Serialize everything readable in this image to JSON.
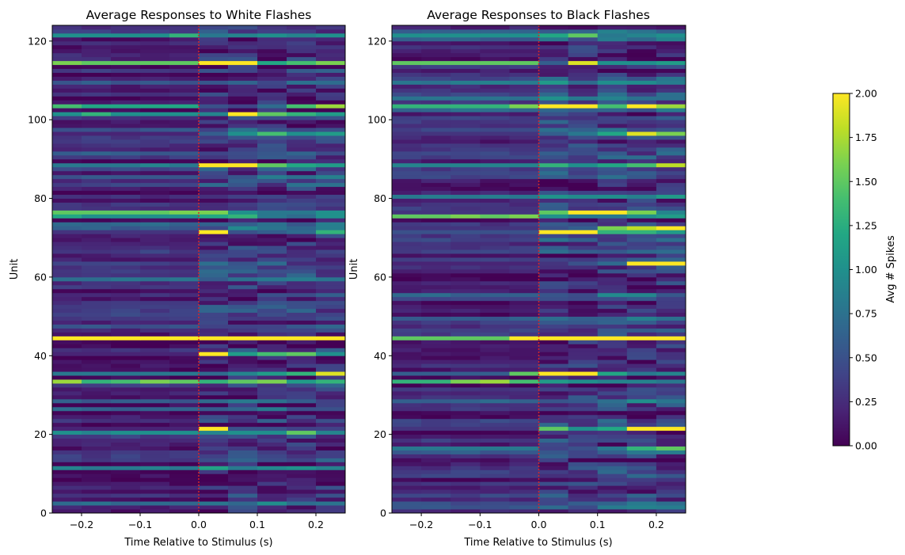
{
  "chart_data": [
    {
      "type": "heatmap",
      "title": "Average Responses to White Flashes",
      "xlabel": "Time Relative to Stimulus (s)",
      "ylabel": "Unit",
      "xlim": [
        -0.25,
        0.25
      ],
      "ylim": [
        0,
        124
      ],
      "x_ticks": [
        "−0.2",
        "−0.1",
        "0.0",
        "0.1",
        "0.2"
      ],
      "x_tick_values": [
        -0.2,
        -0.1,
        0.0,
        0.1,
        0.2
      ],
      "y_ticks": [
        "0",
        "20",
        "40",
        "60",
        "80",
        "100",
        "120"
      ],
      "y_tick_values": [
        0,
        20,
        40,
        60,
        80,
        100,
        120
      ],
      "time_bins": [
        -0.25,
        -0.2,
        -0.15,
        -0.1,
        -0.05,
        0.0,
        0.05,
        0.1,
        0.15,
        0.2,
        0.25
      ],
      "n_units": 124,
      "stimulus_line_x": 0.0,
      "stimulus_line_color": "#d62728",
      "highlight_rows": [
        {
          "unit": 121,
          "values": [
            1.0,
            1.0,
            1.0,
            1.0,
            1.3,
            0.8,
            0.9,
            1.0,
            0.9,
            1.0
          ]
        },
        {
          "unit": 114,
          "values": [
            1.6,
            1.5,
            1.5,
            1.5,
            1.5,
            2.0,
            2.0,
            1.2,
            1.4,
            1.6
          ]
        },
        {
          "unit": 103,
          "values": [
            1.4,
            1.2,
            1.2,
            1.2,
            1.2,
            0.5,
            0.4,
            0.7,
            1.4,
            1.7
          ]
        },
        {
          "unit": 101,
          "values": [
            1.0,
            1.3,
            1.0,
            1.0,
            1.0,
            0.9,
            2.0,
            1.5,
            1.3,
            1.1
          ]
        },
        {
          "unit": 96,
          "values": [
            0.2,
            0.2,
            0.2,
            0.2,
            0.2,
            0.6,
            1.0,
            1.4,
            1.0,
            1.1
          ]
        },
        {
          "unit": 88,
          "values": [
            0.8,
            0.8,
            0.8,
            0.9,
            0.8,
            2.0,
            2.0,
            1.5,
            1.2,
            1.1
          ]
        },
        {
          "unit": 76,
          "values": [
            1.5,
            1.5,
            1.5,
            1.5,
            1.6,
            1.6,
            1.0,
            0.8,
            0.8,
            1.0
          ]
        },
        {
          "unit": 75,
          "values": [
            1.2,
            1.0,
            1.0,
            1.0,
            1.0,
            1.2,
            1.3,
            0.8,
            0.7,
            1.0
          ]
        },
        {
          "unit": 71,
          "values": [
            0.3,
            0.3,
            0.3,
            0.3,
            0.3,
            2.0,
            0.5,
            0.6,
            0.7,
            1.3
          ]
        },
        {
          "unit": 44,
          "values": [
            2.0,
            2.0,
            2.0,
            2.0,
            2.0,
            2.0,
            2.0,
            2.0,
            2.0,
            2.0
          ]
        },
        {
          "unit": 40,
          "values": [
            0.2,
            0.2,
            0.2,
            0.2,
            0.2,
            2.0,
            1.1,
            1.4,
            1.5,
            1.0
          ]
        },
        {
          "unit": 35,
          "values": [
            0.8,
            0.8,
            0.8,
            0.8,
            0.8,
            0.7,
            0.9,
            1.1,
            1.3,
            1.9
          ]
        },
        {
          "unit": 33,
          "values": [
            1.7,
            1.3,
            1.4,
            1.6,
            1.5,
            1.3,
            1.5,
            1.6,
            1.1,
            1.3
          ]
        },
        {
          "unit": 21,
          "values": [
            0.2,
            0.2,
            0.2,
            0.2,
            0.2,
            2.0,
            0.5,
            0.5,
            0.4,
            0.4
          ]
        },
        {
          "unit": 20,
          "values": [
            1.0,
            0.9,
            1.0,
            1.0,
            1.0,
            0.9,
            1.0,
            1.0,
            1.5,
            0.9
          ]
        }
      ]
    },
    {
      "type": "heatmap",
      "title": "Average Responses to Black Flashes",
      "xlabel": "Time Relative to Stimulus (s)",
      "ylabel": "Unit",
      "xlim": [
        -0.25,
        0.25
      ],
      "ylim": [
        0,
        124
      ],
      "x_ticks": [
        "−0.2",
        "−0.1",
        "0.0",
        "0.1",
        "0.2"
      ],
      "x_tick_values": [
        -0.2,
        -0.1,
        0.0,
        0.1,
        0.2
      ],
      "y_ticks": [
        "0",
        "20",
        "40",
        "60",
        "80",
        "100",
        "120"
      ],
      "y_tick_values": [
        0,
        20,
        40,
        60,
        80,
        100,
        120
      ],
      "time_bins": [
        -0.25,
        -0.2,
        -0.15,
        -0.1,
        -0.05,
        0.0,
        0.05,
        0.1,
        0.15,
        0.2,
        0.25
      ],
      "n_units": 124,
      "stimulus_line_x": 0.0,
      "stimulus_line_color": "#d62728",
      "highlight_rows": [
        {
          "unit": 121,
          "values": [
            1.0,
            1.0,
            1.0,
            1.0,
            1.0,
            1.2,
            1.5,
            0.8,
            0.9,
            1.0
          ]
        },
        {
          "unit": 114,
          "values": [
            1.5,
            1.5,
            1.5,
            1.5,
            1.5,
            0.6,
            1.9,
            1.0,
            1.0,
            1.1
          ]
        },
        {
          "unit": 103,
          "values": [
            1.3,
            1.3,
            1.3,
            1.3,
            1.6,
            2.0,
            2.0,
            1.4,
            2.0,
            1.7
          ]
        },
        {
          "unit": 96,
          "values": [
            0.3,
            0.3,
            0.3,
            0.3,
            0.3,
            0.6,
            0.8,
            1.2,
            1.9,
            1.6
          ]
        },
        {
          "unit": 88,
          "values": [
            0.9,
            0.9,
            0.9,
            0.9,
            0.9,
            1.3,
            1.0,
            1.2,
            1.4,
            1.8
          ]
        },
        {
          "unit": 76,
          "values": [
            0.3,
            0.3,
            0.3,
            0.3,
            0.3,
            1.5,
            2.0,
            2.0,
            1.6,
            0.9
          ]
        },
        {
          "unit": 75,
          "values": [
            1.5,
            1.5,
            1.6,
            1.5,
            1.6,
            1.0,
            0.8,
            0.8,
            1.0,
            1.1
          ]
        },
        {
          "unit": 72,
          "values": [
            0.3,
            0.3,
            0.3,
            0.3,
            0.3,
            0.5,
            0.6,
            1.6,
            1.8,
            2.0
          ]
        },
        {
          "unit": 71,
          "values": [
            0.5,
            0.5,
            0.5,
            0.5,
            0.5,
            2.0,
            2.0,
            1.3,
            1.3,
            1.1
          ]
        },
        {
          "unit": 63,
          "values": [
            0.2,
            0.2,
            0.2,
            0.2,
            0.2,
            0.3,
            0.5,
            0.7,
            2.0,
            2.0
          ]
        },
        {
          "unit": 44,
          "values": [
            1.5,
            1.5,
            1.5,
            1.5,
            2.0,
            2.0,
            2.0,
            2.0,
            2.0,
            2.0
          ]
        },
        {
          "unit": 35,
          "values": [
            0.6,
            0.6,
            0.6,
            0.6,
            1.5,
            2.0,
            2.0,
            1.2,
            0.8,
            0.9
          ]
        },
        {
          "unit": 33,
          "values": [
            1.3,
            1.3,
            1.6,
            1.7,
            1.4,
            1.1,
            1.0,
            0.9,
            0.9,
            0.8
          ]
        },
        {
          "unit": 21,
          "values": [
            0.3,
            0.3,
            0.3,
            0.3,
            0.3,
            1.5,
            1.0,
            1.2,
            2.0,
            2.0
          ]
        },
        {
          "unit": 16,
          "values": [
            0.8,
            0.8,
            0.8,
            0.8,
            0.8,
            0.4,
            0.5,
            0.8,
            1.3,
            1.5
          ]
        }
      ]
    }
  ],
  "colorbar": {
    "label": "Avg # Spikes",
    "vmin": 0.0,
    "vmax": 2.0,
    "ticks": [
      "0.00",
      "0.25",
      "0.50",
      "0.75",
      "1.00",
      "1.25",
      "1.50",
      "1.75",
      "2.00"
    ],
    "tick_values": [
      0,
      0.25,
      0.5,
      0.75,
      1.0,
      1.25,
      1.5,
      1.75,
      2.0
    ],
    "colormap": "viridis"
  }
}
